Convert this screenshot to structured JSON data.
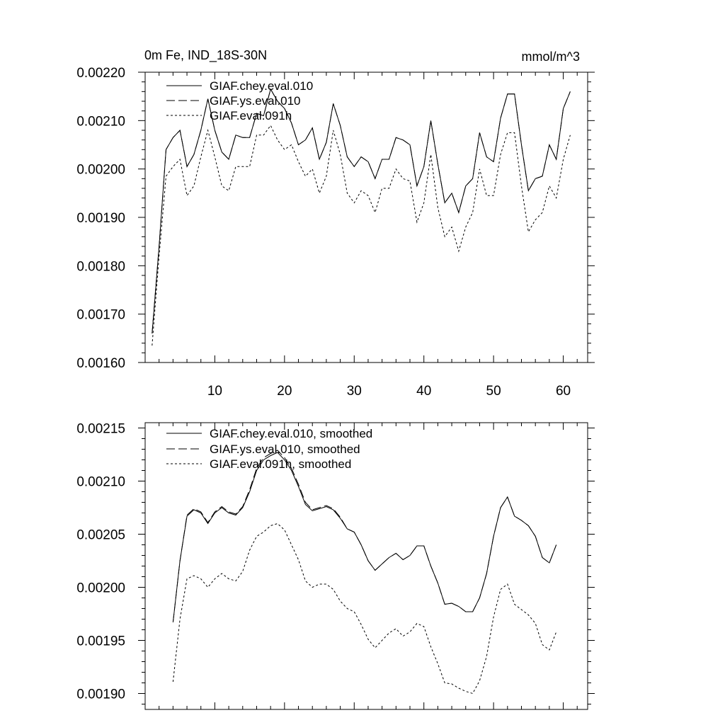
{
  "chart_data": [
    {
      "type": "line",
      "title_left": "0m Fe, IND_18S-30N",
      "title_right": "mmol/m^3",
      "xlim": [
        0,
        63.5
      ],
      "ylim": [
        0.0016,
        0.0022
      ],
      "xticks": [
        10,
        20,
        30,
        40,
        50,
        60
      ],
      "yticks": [
        {
          "value": 0.0016,
          "label": "0.00160"
        },
        {
          "value": 0.0017,
          "label": "0.00170"
        },
        {
          "value": 0.0018,
          "label": "0.00180"
        },
        {
          "value": 0.0019,
          "label": "0.00190"
        },
        {
          "value": 0.002,
          "label": "0.00200"
        },
        {
          "value": 0.0021,
          "label": "0.00210"
        },
        {
          "value": 0.0022,
          "label": "0.00220"
        }
      ],
      "x_start": 1,
      "series": [
        {
          "name": "GIAF.chey.eval.010",
          "dash": "solid",
          "color": "#000000",
          "values": [
            0.00166,
            0.00184,
            0.00204,
            0.002065,
            0.00208,
            0.002005,
            0.00203,
            0.00208,
            0.002145,
            0.00208,
            0.002035,
            0.00202,
            0.00207,
            0.002065,
            0.002065,
            0.002115,
            0.00211,
            0.002165,
            0.00214,
            0.002125,
            0.002095,
            0.00205,
            0.00206,
            0.002085,
            0.00202,
            0.002055,
            0.002135,
            0.00209,
            0.002025,
            0.002005,
            0.002025,
            0.002015,
            0.00198,
            0.00202,
            0.00202,
            0.002065,
            0.00206,
            0.00205,
            0.001965,
            0.002005,
            0.0021,
            0.00201,
            0.00193,
            0.00195,
            0.00191,
            0.001965,
            0.00198,
            0.002075,
            0.002025,
            0.002015,
            0.002105,
            0.002155,
            0.002155,
            0.00205,
            0.001955,
            0.00198,
            0.001985,
            0.00205,
            0.00202,
            0.002125,
            0.00216
          ]
        },
        {
          "name": "GIAF.ys.eval.010",
          "dash": "long-dash",
          "color": "#000000",
          "values": [
            0.00166,
            0.00184,
            0.00204,
            0.002065,
            0.00208,
            0.002005,
            0.00203,
            0.00208,
            0.002145,
            0.00208,
            0.002035,
            0.00202,
            0.00207,
            0.002065,
            0.002065,
            0.002115,
            0.00211,
            0.002165,
            0.00214,
            0.002125,
            0.002095,
            0.00205,
            0.00206,
            0.002085,
            0.00202,
            0.002055,
            0.002135,
            0.00209,
            0.002025,
            0.002005,
            0.002025,
            0.002015,
            0.00198,
            0.00202,
            0.00202,
            0.002065,
            0.00206,
            0.00205,
            0.001965,
            0.002005,
            0.0021,
            0.00201,
            0.00193,
            0.00195,
            0.00191,
            0.001965,
            0.00198,
            0.002075,
            0.002025,
            0.002015,
            0.002105,
            0.002155,
            0.002155,
            0.00205,
            0.001955,
            0.00198,
            0.001985,
            0.00205,
            0.00202,
            0.002125,
            0.00216
          ]
        },
        {
          "name": "GIAF.eval.091h",
          "dash": "short-dash",
          "color": "#000000",
          "values": [
            0.001635,
            0.00182,
            0.001985,
            0.002005,
            0.00202,
            0.001945,
            0.001965,
            0.002025,
            0.00208,
            0.002025,
            0.001965,
            0.001955,
            0.002005,
            0.002005,
            0.002005,
            0.00207,
            0.00207,
            0.00209,
            0.00206,
            0.00204,
            0.00205,
            0.002015,
            0.001985,
            0.002,
            0.00195,
            0.001985,
            0.00208,
            0.00203,
            0.00195,
            0.00193,
            0.001955,
            0.001945,
            0.00191,
            0.00196,
            0.00196,
            0.002,
            0.00198,
            0.001975,
            0.00189,
            0.00193,
            0.00203,
            0.00192,
            0.00186,
            0.00188,
            0.00183,
            0.00188,
            0.00191,
            0.002,
            0.001945,
            0.001945,
            0.00203,
            0.002075,
            0.002075,
            0.001965,
            0.00187,
            0.001895,
            0.00191,
            0.001965,
            0.00194,
            0.00202,
            0.00207
          ]
        }
      ]
    },
    {
      "type": "line",
      "xlim": [
        0,
        63.5
      ],
      "ylim": [
        0.001885,
        0.002155
      ],
      "xticks": [
        10,
        20,
        30,
        40,
        50,
        60
      ],
      "show_xtick_labels": false,
      "yticks": [
        {
          "value": 0.0019,
          "label": "0.00190"
        },
        {
          "value": 0.00195,
          "label": "0.00195"
        },
        {
          "value": 0.002,
          "label": "0.00200"
        },
        {
          "value": 0.00205,
          "label": "0.00205"
        },
        {
          "value": 0.0021,
          "label": "0.00210"
        },
        {
          "value": 0.00215,
          "label": "0.00215"
        }
      ],
      "x_start": 4,
      "series": [
        {
          "name": "GIAF.chey.eval.010, smoothed",
          "dash": "solid",
          "color": "#000000",
          "values": [
            0.001967,
            0.002025,
            0.002067,
            0.002073,
            0.00207,
            0.00206,
            0.00207,
            0.002075,
            0.00207,
            0.002068,
            0.002075,
            0.00209,
            0.00211,
            0.00212,
            0.002124,
            0.002127,
            0.00212,
            0.00211,
            0.002095,
            0.002078,
            0.002072,
            0.002074,
            0.002076,
            0.002073,
            0.002065,
            0.002055,
            0.002052,
            0.00204,
            0.002025,
            0.002016,
            0.002022,
            0.002028,
            0.002032,
            0.002026,
            0.00203,
            0.002039,
            0.002039,
            0.00202,
            0.002004,
            0.001984,
            0.001985,
            0.001982,
            0.001977,
            0.001977,
            0.00199,
            0.002013,
            0.002048,
            0.002075,
            0.002085,
            0.002067,
            0.002063,
            0.002058,
            0.002048,
            0.002028,
            0.002023,
            0.00204
          ]
        },
        {
          "name": "GIAF.ys.eval.010, smoothed",
          "dash": "long-dash",
          "color": "#000000",
          "values": [
            0.001967,
            0.002025,
            0.002068,
            0.002074,
            0.002071,
            0.002061,
            0.002071,
            0.002076,
            0.002071,
            0.002069,
            0.002076,
            0.002092,
            0.002112,
            0.002122,
            0.002126,
            0.002129,
            0.002122,
            0.002112,
            0.002097,
            0.00208,
            0.002073,
            0.002075,
            0.002077,
            0.002074,
            0.002066,
            0.002055,
            0.002052,
            0.00204,
            0.002025,
            0.002016,
            0.002022,
            0.002028,
            0.002032,
            0.002026,
            0.00203,
            0.002039,
            0.002039,
            0.00202,
            0.002004,
            0.001984,
            0.001985,
            0.001982,
            0.001977,
            0.001977,
            0.00199,
            0.002013,
            0.002048,
            0.002075,
            0.002085,
            0.002067,
            0.002063,
            0.002058,
            0.002048,
            0.002028,
            0.002023,
            0.00204
          ]
        },
        {
          "name": "GIAF.eval.091h, smoothed",
          "dash": "short-dash",
          "color": "#000000",
          "values": [
            0.001911,
            0.00197,
            0.002008,
            0.002011,
            0.002008,
            0.002,
            0.002008,
            0.002013,
            0.002008,
            0.002006,
            0.002015,
            0.002035,
            0.002048,
            0.002052,
            0.002058,
            0.00206,
            0.002054,
            0.00204,
            0.002026,
            0.002006,
            0.002,
            0.002003,
            0.002003,
            0.001998,
            0.001987,
            0.00198,
            0.001977,
            0.001965,
            0.001951,
            0.001943,
            0.00195,
            0.001957,
            0.001961,
            0.001954,
            0.001958,
            0.001966,
            0.001963,
            0.001944,
            0.001928,
            0.00191,
            0.001909,
            0.001905,
            0.001902,
            0.0019,
            0.001912,
            0.001935,
            0.001972,
            0.001998,
            0.002003,
            0.001984,
            0.001979,
            0.001974,
            0.001966,
            0.001946,
            0.001941,
            0.001958
          ]
        }
      ]
    }
  ]
}
